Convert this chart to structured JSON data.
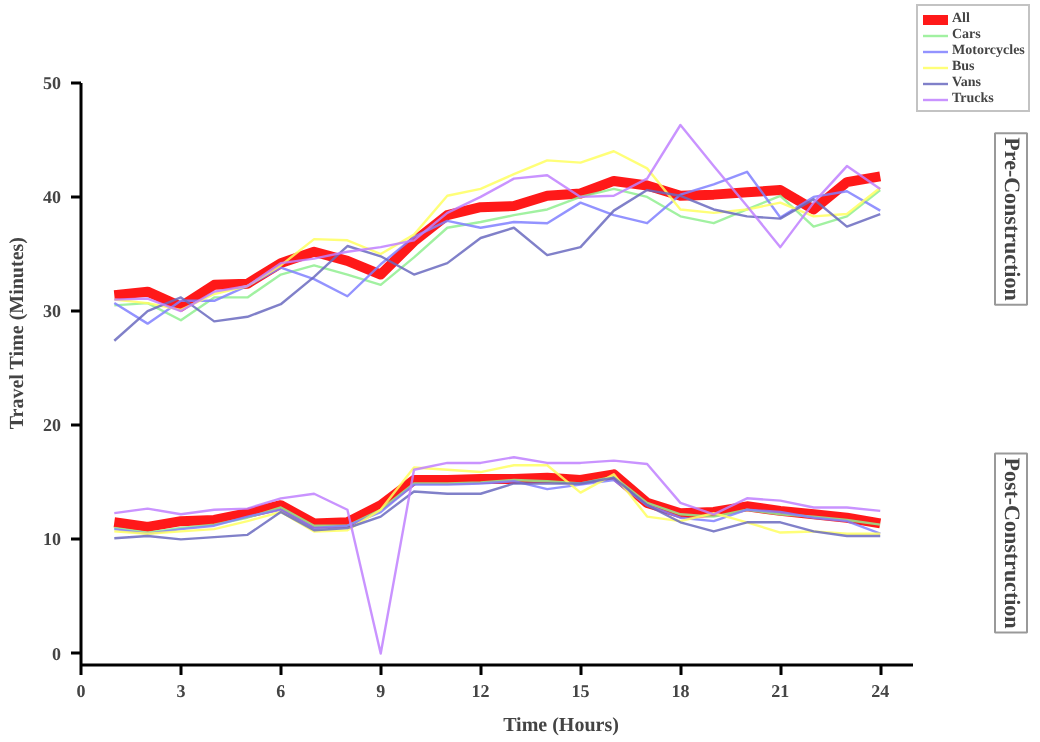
{
  "chart_data": {
    "type": "line",
    "xlabel": "Time (Hours)",
    "ylabel": "Travel Time (Minutes)",
    "x": [
      1,
      2,
      3,
      4,
      5,
      6,
      7,
      8,
      9,
      10,
      11,
      12,
      13,
      14,
      15,
      16,
      17,
      18,
      19,
      20,
      21,
      22,
      23,
      24
    ],
    "xlim": [
      0,
      25
    ],
    "xticks": [
      0,
      3,
      6,
      9,
      12,
      15,
      18,
      21,
      24
    ],
    "ylim": [
      -1,
      50
    ],
    "yticks": [
      0,
      10,
      20,
      30,
      40,
      50
    ],
    "grid": false,
    "legend": "top right",
    "marker": "none",
    "line_style": "solid",
    "annotations": [
      "Pre-Construction",
      "Post-Construction"
    ],
    "series": [
      {
        "name": "All",
        "color": "#ff0000",
        "values": [
          31.4,
          31.7,
          30.4,
          32.3,
          32.4,
          34.2,
          35.2,
          34.4,
          33.2,
          36.1,
          38.4,
          39.1,
          39.2,
          40.1,
          40.3,
          41.4,
          41.0,
          40.1,
          40.2,
          40.4,
          40.6,
          38.9,
          41.3,
          41.8
        ]
      },
      {
        "name": "Cars",
        "color": "#90ee90",
        "values": [
          30.5,
          30.7,
          29.2,
          31.2,
          31.2,
          33.2,
          34.0,
          33.2,
          32.3,
          34.7,
          37.3,
          37.8,
          38.4,
          38.9,
          40.0,
          40.7,
          40.0,
          38.3,
          37.7,
          38.9,
          40.1,
          37.4,
          38.3,
          40.6
        ]
      },
      {
        "name": "Motorcycles",
        "color": "#8080ff",
        "values": [
          30.7,
          28.9,
          30.9,
          30.9,
          32.2,
          33.8,
          32.8,
          31.3,
          34.1,
          36.5,
          37.9,
          37.3,
          37.8,
          37.7,
          39.5,
          38.4,
          37.7,
          40.2,
          41.1,
          42.2,
          38.2,
          40.0,
          40.5,
          38.8
        ]
      },
      {
        "name": "Bus",
        "color": "#ffff60",
        "values": [
          31.0,
          30.7,
          30.1,
          31.5,
          32.2,
          34.0,
          36.3,
          36.2,
          35.0,
          36.7,
          40.1,
          40.7,
          42.0,
          43.2,
          43.0,
          44.0,
          42.5,
          38.9,
          38.6,
          38.9,
          39.5,
          38.3,
          38.5,
          40.8
        ]
      },
      {
        "name": "Vans",
        "color": "#6a6ac0",
        "values": [
          27.4,
          30.0,
          31.2,
          29.1,
          29.5,
          30.6,
          33.0,
          35.7,
          34.8,
          33.2,
          34.2,
          36.4,
          37.3,
          34.9,
          35.6,
          38.8,
          40.6,
          40.1,
          38.9,
          38.3,
          38.1,
          39.8,
          37.4,
          38.5
        ]
      },
      {
        "name": "Trucks",
        "color": "#c080ff",
        "values": [
          31.0,
          31.1,
          30.0,
          31.7,
          32.2,
          34.2,
          34.6,
          35.2,
          35.6,
          36.2,
          38.6,
          40.0,
          41.6,
          41.9,
          40.0,
          40.1,
          41.6,
          46.3,
          42.7,
          39.2,
          35.6,
          39.5,
          42.7,
          40.7
        ]
      },
      {
        "color": "#ff0000",
        "values": [
          11.5,
          11.1,
          11.6,
          11.7,
          12.3,
          13.0,
          11.4,
          11.5,
          13.0,
          15.2,
          15.2,
          15.3,
          15.3,
          15.4,
          15.2,
          15.7,
          13.2,
          12.3,
          12.4,
          12.9,
          12.5,
          12.2,
          11.9,
          11.4
        ]
      },
      {
        "color": "#90ee90",
        "values": [
          11.0,
          10.6,
          11.0,
          11.3,
          11.9,
          12.8,
          11.2,
          11.2,
          12.6,
          14.9,
          14.9,
          15.0,
          15.2,
          15.1,
          14.9,
          15.5,
          13.2,
          12.2,
          12.0,
          12.6,
          12.2,
          12.0,
          11.7,
          11.3
        ]
      },
      {
        "color": "#8080ff",
        "values": [
          10.9,
          10.5,
          10.9,
          11.2,
          12.0,
          12.6,
          11.0,
          11.2,
          12.4,
          14.8,
          14.8,
          14.9,
          15.1,
          14.4,
          14.8,
          15.2,
          13.0,
          11.9,
          11.6,
          12.6,
          12.4,
          11.9,
          11.6,
          10.5
        ]
      },
      {
        "color": "#ffff60",
        "values": [
          10.7,
          10.5,
          10.7,
          10.9,
          11.6,
          12.4,
          10.7,
          10.8,
          12.6,
          16.3,
          16.1,
          15.9,
          16.5,
          16.5,
          14.1,
          15.7,
          12.0,
          11.6,
          12.3,
          11.5,
          10.6,
          10.7,
          10.5,
          10.5
        ]
      },
      {
        "color": "#6a6ac0",
        "values": [
          10.1,
          10.3,
          10.0,
          10.2,
          10.4,
          12.4,
          10.8,
          11.0,
          12.0,
          14.2,
          14.0,
          14.0,
          14.9,
          14.9,
          14.9,
          15.4,
          13.0,
          11.5,
          10.7,
          11.5,
          11.5,
          10.7,
          10.3,
          10.3
        ]
      },
      {
        "color": "#c080ff",
        "values": [
          12.3,
          12.7,
          12.2,
          12.6,
          12.7,
          13.6,
          14.0,
          12.6,
          0.0,
          16.1,
          16.7,
          16.7,
          17.2,
          16.7,
          16.7,
          16.9,
          16.6,
          13.2,
          12.2,
          13.6,
          13.4,
          12.8,
          12.8,
          12.5
        ]
      }
    ]
  }
}
